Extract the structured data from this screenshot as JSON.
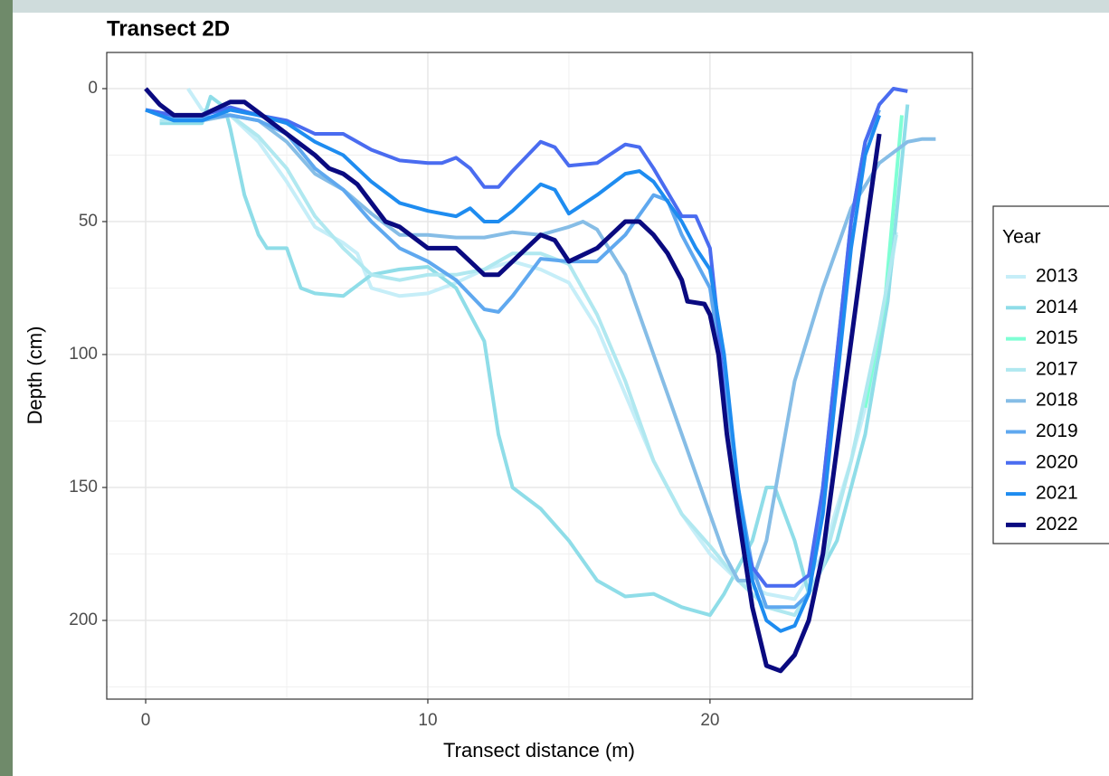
{
  "chart_data": {
    "type": "line",
    "title": "Transect 2D",
    "x_label": "Transect distance (m)",
    "y_label": "Depth (cm)",
    "legend_title": "Year",
    "legend_position": "right",
    "grid": true,
    "y_reversed": true,
    "xlim": [
      -1.38,
      29.3
    ],
    "ylim": [
      -13.6,
      229.6
    ],
    "xticks": [
      0,
      10,
      20
    ],
    "yticks": [
      0,
      50,
      100,
      150,
      200
    ],
    "x_minor_grid": [
      5,
      15,
      25
    ],
    "y_minor_grid": [
      25,
      75,
      125,
      175,
      225
    ],
    "series": [
      {
        "name": "2013",
        "color": "#c6eef8",
        "x": [
          1.5,
          2,
          3,
          4,
          5,
          6,
          7,
          7.5,
          8,
          9,
          10,
          11,
          12,
          13,
          14,
          15,
          16,
          17,
          18,
          19,
          20,
          21,
          22,
          23,
          24,
          25,
          26,
          26.6
        ],
        "values": [
          0,
          8,
          10,
          20,
          35,
          52,
          58,
          62,
          75,
          78,
          77,
          73,
          68,
          65,
          68,
          73,
          90,
          115,
          140,
          160,
          175,
          185,
          190,
          192,
          175,
          140,
          100,
          54
        ]
      },
      {
        "name": "2014",
        "color": "#8fdde8",
        "x": [
          0.5,
          1,
          2,
          2.3,
          2.8,
          3,
          3.5,
          4,
          4.3,
          5,
          5.5,
          6,
          7,
          8,
          9,
          10,
          11,
          11.5,
          12,
          12.5,
          13,
          14,
          15,
          16,
          17,
          18,
          19,
          20,
          20.5,
          21.5,
          22,
          22.3,
          23,
          23.5,
          24.5,
          25.5,
          26.3,
          27
        ],
        "values": [
          13,
          13,
          13,
          3,
          7,
          15,
          40,
          55,
          60,
          60,
          75,
          77,
          78,
          70,
          68,
          67,
          75,
          85,
          95,
          130,
          150,
          158,
          170,
          185,
          191,
          190,
          195,
          198,
          190,
          170,
          150,
          150,
          170,
          190,
          170,
          130,
          80,
          6
        ]
      },
      {
        "name": "2015",
        "color": "#7fffd4",
        "x": [
          25.5,
          26.2,
          26.8
        ],
        "values": [
          120,
          80,
          10
        ]
      },
      {
        "name": "2017",
        "color": "#b0e8f0",
        "x": [
          0.5,
          2,
          3,
          4,
          5,
          6,
          7,
          8,
          9,
          10,
          11,
          12,
          13,
          14,
          15,
          16,
          17,
          18,
          19,
          20,
          21,
          22,
          23,
          24,
          25,
          26,
          26.6
        ],
        "values": [
          12,
          12,
          10,
          18,
          30,
          48,
          60,
          70,
          72,
          70,
          70,
          68,
          62,
          62,
          66,
          85,
          110,
          140,
          160,
          172,
          185,
          195,
          198,
          180,
          140,
          90,
          55
        ]
      },
      {
        "name": "2018",
        "color": "#86bde6",
        "x": [
          0,
          1,
          2,
          3,
          4,
          5,
          6,
          7,
          8,
          9,
          10,
          11,
          12,
          13,
          14,
          15,
          15.5,
          16,
          17,
          18,
          19,
          20,
          20.5,
          21,
          21.5,
          22,
          22.5,
          23,
          24,
          25,
          26,
          27,
          27.5,
          28
        ],
        "values": [
          8,
          12,
          12,
          10,
          12,
          20,
          32,
          38,
          47,
          55,
          55,
          56,
          56,
          54,
          55,
          52,
          50,
          53,
          70,
          100,
          130,
          160,
          175,
          185,
          185,
          170,
          140,
          110,
          75,
          45,
          28,
          20,
          19,
          19
        ]
      },
      {
        "name": "2019",
        "color": "#5fa8ef",
        "x": [
          0,
          1,
          2,
          3,
          4,
          5,
          6,
          7,
          8,
          9,
          10,
          11,
          12,
          12.5,
          13,
          14,
          15,
          16,
          17,
          18,
          18.5,
          19,
          19.5,
          20,
          20.5,
          21,
          21.5,
          22,
          23,
          23.5,
          24,
          24.5,
          25,
          25.5,
          26
        ],
        "values": [
          8,
          11,
          11,
          10,
          12,
          17,
          30,
          38,
          50,
          60,
          65,
          72,
          83,
          84,
          78,
          64,
          65,
          65,
          55,
          40,
          42,
          55,
          65,
          75,
          110,
          150,
          180,
          195,
          195,
          190,
          150,
          100,
          50,
          20,
          8
        ]
      },
      {
        "name": "2020",
        "color": "#4a6cf0",
        "x": [
          0,
          1,
          2,
          3,
          4,
          5,
          6,
          7,
          8,
          9,
          10,
          10.5,
          11,
          11.5,
          12,
          12.5,
          13,
          14,
          14.5,
          15,
          16,
          17,
          17.5,
          18,
          19,
          19.5,
          20,
          20.3,
          20.6,
          21,
          21.5,
          22,
          23,
          23.5,
          24,
          24.5,
          25,
          25.5,
          26,
          26.5,
          27
        ],
        "values": [
          8,
          10,
          10,
          7,
          10,
          12,
          17,
          17,
          23,
          27,
          28,
          28,
          26,
          30,
          37,
          37,
          31,
          20,
          22,
          29,
          28,
          21,
          22,
          30,
          48,
          48,
          60,
          90,
          130,
          160,
          180,
          187,
          187,
          183,
          150,
          100,
          50,
          20,
          6,
          0,
          1
        ]
      },
      {
        "name": "2021",
        "color": "#1e8cf0",
        "x": [
          0,
          1,
          2,
          3,
          4,
          5,
          6,
          7,
          8,
          9,
          10,
          11,
          11.5,
          12,
          12.5,
          13,
          14,
          14.5,
          15,
          16,
          17,
          17.5,
          18,
          19,
          19.5,
          20,
          20.5,
          21,
          21.5,
          22,
          22.5,
          23,
          23.5,
          24,
          24.5,
          25,
          25.5,
          26
        ],
        "values": [
          8,
          12,
          12,
          8,
          10,
          13,
          20,
          25,
          35,
          43,
          46,
          48,
          45,
          50,
          50,
          46,
          36,
          38,
          47,
          40,
          32,
          31,
          35,
          50,
          60,
          68,
          100,
          150,
          185,
          200,
          204,
          202,
          190,
          160,
          110,
          60,
          25,
          10
        ]
      },
      {
        "name": "2022",
        "color": "#0a0a80",
        "x": [
          0,
          0.5,
          1,
          2,
          3,
          3.5,
          4,
          5,
          6,
          6.5,
          7,
          7.5,
          8,
          8.5,
          9,
          10,
          11,
          11.5,
          12,
          12.5,
          13,
          14,
          14.5,
          15,
          16,
          16.5,
          17,
          17.5,
          18,
          18.5,
          19,
          19.2,
          19.8,
          20,
          20.3,
          20.6,
          21,
          21.5,
          22,
          22.5,
          23,
          23.5,
          24,
          24.5,
          25,
          25.5,
          26
        ],
        "values": [
          0,
          6,
          10,
          10,
          5,
          5,
          9,
          17,
          25,
          30,
          32,
          36,
          43,
          50,
          52,
          60,
          60,
          65,
          70,
          70,
          65,
          55,
          57,
          65,
          60,
          55,
          50,
          50,
          55,
          62,
          72,
          80,
          81,
          85,
          100,
          130,
          160,
          195,
          217,
          219,
          213,
          200,
          175,
          135,
          95,
          55,
          17
        ]
      }
    ]
  }
}
